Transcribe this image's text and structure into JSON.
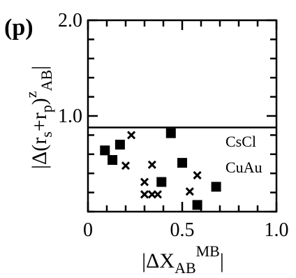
{
  "chart_data": {
    "type": "scatter",
    "panel_label": "(p)",
    "xlabel": {
      "pre": "|ΔX",
      "sub": "AB",
      "sup": "MB",
      "post": "|"
    },
    "ylabel": {
      "pre": "|Δ(r",
      "sub1": "s",
      "mid": "+r",
      "sub2": "p",
      "close": ")",
      "sup": "z",
      "sub3": "AB",
      "post": "|"
    },
    "xlim": [
      0,
      1.0
    ],
    "ylim": [
      0,
      2.0
    ],
    "x_ticks": [
      {
        "value": 0,
        "label": "0"
      },
      {
        "value": 0.5,
        "label": "0.5"
      },
      {
        "value": 1.0,
        "label": "1.0"
      }
    ],
    "y_ticks": [
      {
        "value": 1.0,
        "label": "1.0"
      },
      {
        "value": 2.0,
        "label": "2.0"
      }
    ],
    "minor_tick_step_x": 0.1,
    "minor_tick_step_y": 0.2,
    "reference_line": {
      "y": 0.88
    },
    "annotations": [
      "CsCl",
      "CuAu"
    ],
    "series": [
      {
        "marker": "square",
        "points": [
          {
            "x": 0.09,
            "y": 0.64
          },
          {
            "x": 0.13,
            "y": 0.54
          },
          {
            "x": 0.17,
            "y": 0.7
          },
          {
            "x": 0.39,
            "y": 0.31
          },
          {
            "x": 0.44,
            "y": 0.82
          },
          {
            "x": 0.5,
            "y": 0.51
          },
          {
            "x": 0.58,
            "y": 0.07
          },
          {
            "x": 0.68,
            "y": 0.26
          }
        ]
      },
      {
        "marker": "cross",
        "points": [
          {
            "x": 0.23,
            "y": 0.8
          },
          {
            "x": 0.2,
            "y": 0.48
          },
          {
            "x": 0.34,
            "y": 0.49
          },
          {
            "x": 0.3,
            "y": 0.31
          },
          {
            "x": 0.3,
            "y": 0.18
          },
          {
            "x": 0.34,
            "y": 0.18
          },
          {
            "x": 0.37,
            "y": 0.18
          },
          {
            "x": 0.54,
            "y": 0.21
          },
          {
            "x": 0.58,
            "y": 0.38
          }
        ]
      }
    ]
  }
}
